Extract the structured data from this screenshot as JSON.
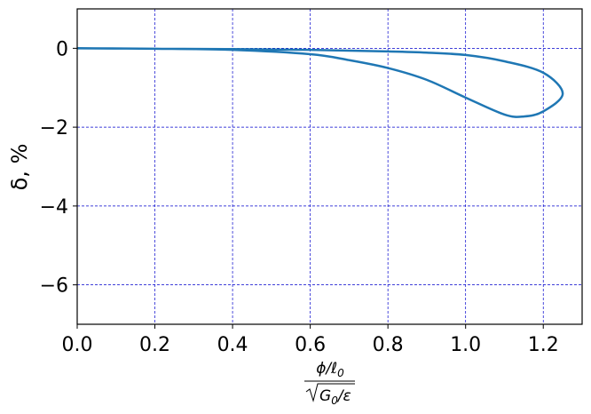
{
  "chart_data": {
    "type": "line",
    "title": "",
    "xlabel": {
      "numerator": "ϕ/ℓ",
      "numerator_sub": "0",
      "denominator": "G",
      "denominator_sub": "0",
      "denominator_rest": "/ε"
    },
    "ylabel": "δ, %",
    "xlim": [
      0.0,
      1.3
    ],
    "ylim": [
      -7.0,
      1.0
    ],
    "xticks": [
      0.0,
      0.2,
      0.4,
      0.6,
      0.8,
      1.0,
      1.2
    ],
    "xtick_labels": [
      "0.0",
      "0.2",
      "0.4",
      "0.6",
      "0.8",
      "1.0",
      "1.2"
    ],
    "yticks": [
      0,
      -2,
      -4,
      -6
    ],
    "ytick_labels": [
      "0",
      "−2",
      "−4",
      "−6"
    ],
    "grid": true,
    "grid_color": "#0000cc",
    "line_color": "#1f77b4",
    "series": [
      {
        "x": [
          0.0,
          0.2,
          0.4,
          0.6,
          0.7,
          0.8,
          0.9,
          1.0,
          1.1,
          1.15,
          1.2,
          1.25,
          1.2,
          1.1,
          1.0,
          0.9,
          0.8,
          0.6,
          0.4,
          0.2,
          0.0
        ],
        "y": [
          0.0,
          -0.01,
          -0.04,
          -0.15,
          -0.3,
          -0.5,
          -0.8,
          -1.25,
          -1.68,
          -1.73,
          -1.6,
          -1.15,
          -0.62,
          -0.33,
          -0.17,
          -0.11,
          -0.08,
          -0.04,
          -0.02,
          -0.01,
          0.0
        ]
      }
    ]
  }
}
